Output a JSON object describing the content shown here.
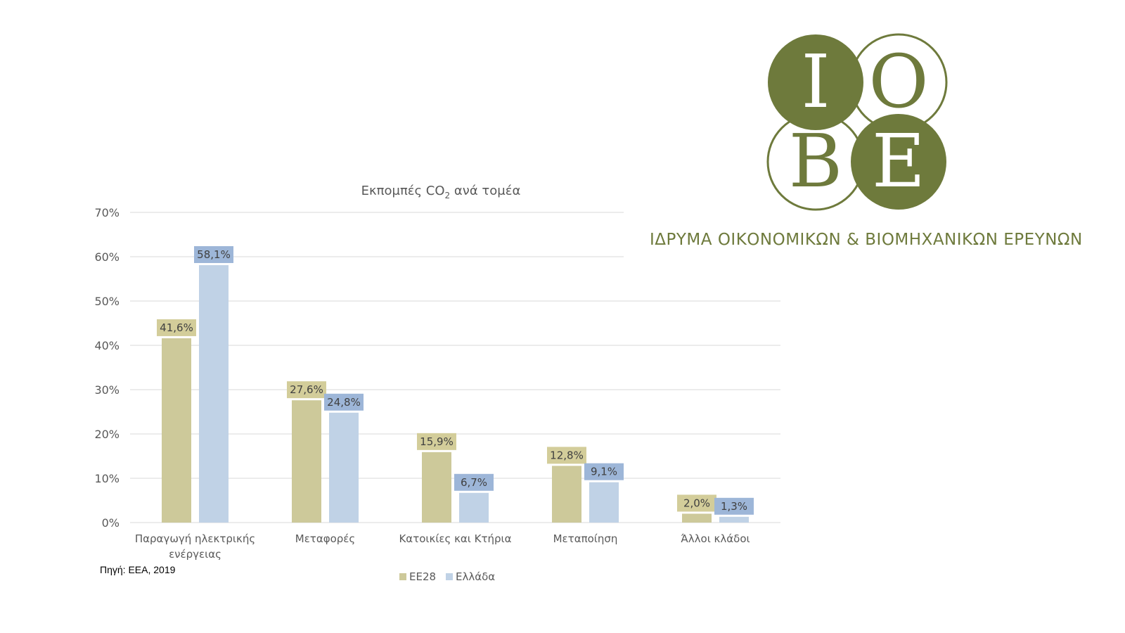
{
  "logo": {
    "letters": [
      "Ι",
      "Ο",
      "Β",
      "Ε"
    ],
    "org_name": "ΙΔΡΥΜΑ ΟΙΚΟΝΟΜΙΚΩΝ & ΒΙΟΜΗΧΑΝΙΚΩΝ ΕΡΕΥΝΩΝ",
    "color": "#6e7a3c"
  },
  "source": "Πηγή: ΕΕΑ, 2019",
  "chart_data": {
    "type": "bar",
    "title": "Εκπομπές CO",
    "title_sub": "2",
    "title_rest": " ανά τομέα",
    "categories": [
      [
        "Παραγωγή ηλεκτρικής",
        "ενέργειας"
      ],
      [
        "Μεταφορές"
      ],
      [
        "Κατοικίες και Κτήρια"
      ],
      [
        "Μεταποίηση"
      ],
      [
        "Άλλοι κλάδοι"
      ]
    ],
    "series": [
      {
        "name": "ΕΕ28",
        "values": [
          41.6,
          27.6,
          15.9,
          12.8,
          2.0
        ],
        "labels": [
          "41,6%",
          "27,6%",
          "15,9%",
          "12,8%",
          "2,0%"
        ],
        "color": "#cdc99a",
        "label_bg": "#d3cd9a"
      },
      {
        "name": "Ελλάδα",
        "values": [
          58.1,
          24.8,
          6.7,
          9.1,
          1.3
        ],
        "labels": [
          "58,1%",
          "24,8%",
          "6,7%",
          "9,1%",
          "1,3%"
        ],
        "color": "#c0d2e6",
        "label_bg": "#9db6d8"
      }
    ],
    "yticks": [
      "0%",
      "10%",
      "20%",
      "30%",
      "40%",
      "50%",
      "60%",
      "70%"
    ],
    "ylim": [
      0,
      70
    ],
    "grid": true,
    "legend": "bottom"
  }
}
